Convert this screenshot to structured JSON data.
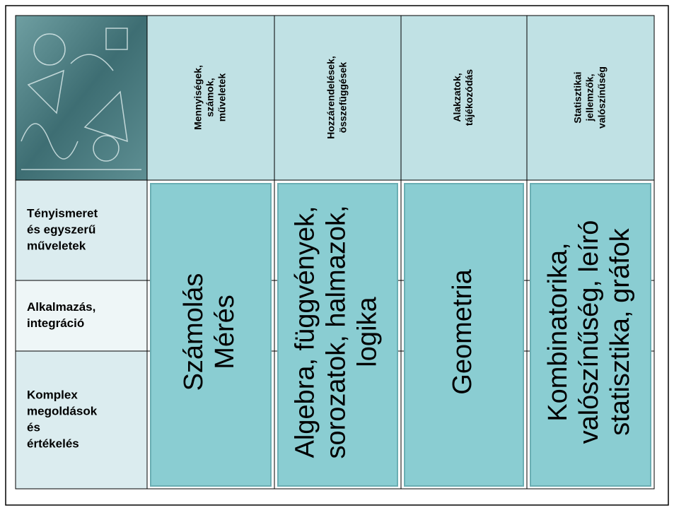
{
  "header": {
    "columns": [
      [
        "Mennyiségek,",
        "számok,",
        "műveletek"
      ],
      [
        "Hozzárendelések,",
        "összefüggések"
      ],
      [
        "Alakzatok,",
        "tájékozódás"
      ],
      [
        "Statisztikai",
        "jellemzők,",
        "valószínűség"
      ]
    ]
  },
  "rows": [
    [
      "Tényismeret",
      "és egyszerű",
      "műveletek"
    ],
    [
      "Alkalmazás,",
      "integráció"
    ],
    [
      "Komplex",
      "megoldások",
      "és",
      "értékelés"
    ]
  ],
  "cells": [
    [
      "Számolás",
      "Mérés"
    ],
    [
      "Algebra, függvények,",
      "sorozatok, halmazok,",
      "logika"
    ],
    [
      "Geometria"
    ],
    [
      "Kombinatorika,",
      "valószínűség, leíró",
      "statisztika, gráfok"
    ]
  ]
}
